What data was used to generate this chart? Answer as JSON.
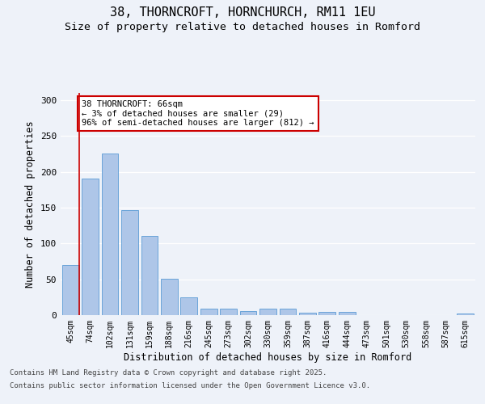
{
  "title_line1": "38, THORNCROFT, HORNCHURCH, RM11 1EU",
  "title_line2": "Size of property relative to detached houses in Romford",
  "xlabel": "Distribution of detached houses by size in Romford",
  "ylabel": "Number of detached properties",
  "categories": [
    "45sqm",
    "74sqm",
    "102sqm",
    "131sqm",
    "159sqm",
    "188sqm",
    "216sqm",
    "245sqm",
    "273sqm",
    "302sqm",
    "330sqm",
    "359sqm",
    "387sqm",
    "416sqm",
    "444sqm",
    "473sqm",
    "501sqm",
    "530sqm",
    "558sqm",
    "587sqm",
    "615sqm"
  ],
  "values": [
    70,
    190,
    225,
    146,
    110,
    51,
    25,
    9,
    9,
    6,
    9,
    9,
    3,
    4,
    4,
    0,
    0,
    0,
    0,
    0,
    2
  ],
  "bar_color": "#aec6e8",
  "bar_edge_color": "#5b9bd5",
  "annotation_box_text": "38 THORNCROFT: 66sqm\n← 3% of detached houses are smaller (29)\n96% of semi-detached houses are larger (812) →",
  "annotation_box_color": "#ffffff",
  "annotation_box_edge_color": "#cc0000",
  "vline_color": "#cc0000",
  "vline_x": 0.43,
  "ylim": [
    0,
    310
  ],
  "yticks": [
    0,
    50,
    100,
    150,
    200,
    250,
    300
  ],
  "background_color": "#eef2f9",
  "grid_color": "#ffffff",
  "footer_line1": "Contains HM Land Registry data © Crown copyright and database right 2025.",
  "footer_line2": "Contains public sector information licensed under the Open Government Licence v3.0.",
  "title_fontsize": 11,
  "subtitle_fontsize": 9.5,
  "tick_fontsize": 7,
  "label_fontsize": 8.5,
  "footer_fontsize": 6.5,
  "annot_fontsize": 7.5
}
